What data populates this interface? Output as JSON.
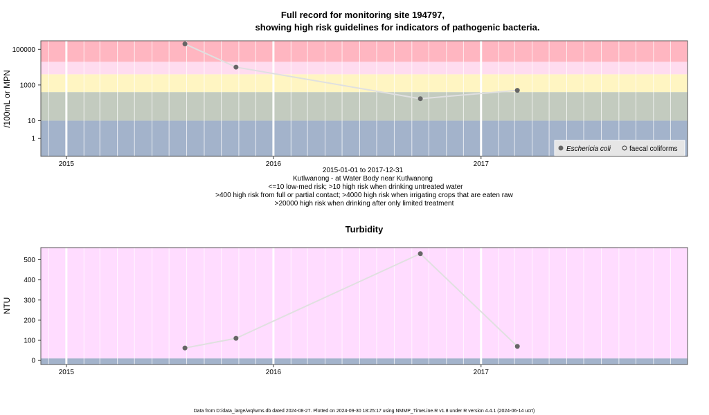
{
  "footer": "Data from D:/data_large/wq/wms.db dated 2024-08-27. Plotted on 2024-09-30 18:25:17 using NMMP_TimeLine.R v1.8 under R version 4.4.1 (2024-06-14 ucrt)",
  "colors": {
    "band_very_high": "#ffb6c1",
    "band_high": "#ffdcef",
    "band_medium": "#fff5c2",
    "band_low": "#c3cbbf",
    "band_lowest": "#a3b3cb",
    "turbidity_bg": "#ffdcff",
    "turbidity_base": "#a3b3cb",
    "line": "#e0e0e0",
    "marker": "#666666",
    "grid": "#ffffff"
  },
  "chart_data": [
    {
      "type": "scatter",
      "title_line1": "Full record for monitoring site 194797,",
      "title_line2": "showing high risk guidelines for indicators of pathogenic bacteria.",
      "ylabel": "/100mL or MPN",
      "yscale": "log",
      "ylim": [
        0.1,
        300000
      ],
      "xlim": [
        "2014-11-17",
        "2017-12-31"
      ],
      "x_ticks": [
        "2015",
        "2016",
        "2017"
      ],
      "y_ticks": [
        {
          "value": 1,
          "label": "1"
        },
        {
          "value": 10,
          "label": "10"
        },
        {
          "value": 1000,
          "label": "1000"
        },
        {
          "value": 100000,
          "label": "100000"
        }
      ],
      "risk_bands": [
        {
          "from": 0.1,
          "to": 10,
          "color": "band_lowest"
        },
        {
          "from": 10,
          "to": 400,
          "color": "band_low"
        },
        {
          "from": 400,
          "to": 4000,
          "color": "band_medium"
        },
        {
          "from": 4000,
          "to": 20000,
          "color": "band_high"
        },
        {
          "from": 20000,
          "to": 300000,
          "color": "band_very_high"
        }
      ],
      "series": [
        {
          "name": "Eschericia coli",
          "marker": "filled",
          "x": [
            "2015-07-29",
            "2015-10-27",
            "2016-09-16",
            "2017-03-06"
          ],
          "values": [
            200000,
            10000,
            170,
            500
          ]
        }
      ],
      "legend": {
        "position": "bottom-right",
        "items": [
          {
            "label": "Eschericia coli",
            "marker": "filled",
            "italic": true
          },
          {
            "label": "faecal coliforms",
            "marker": "open",
            "italic": false
          }
        ]
      },
      "caption": [
        "2015-01-01 to 2017-12-31",
        "Kutlwanong - at Water Body near Kutlwanong",
        "<=10 low-med risk; >10 high risk when drinking untreated water",
        ">400 high risk from full or partial contact; >4000 high risk when irrigating crops that are eaten raw",
        ">20000 high risk when drinking after only limited treatment"
      ]
    },
    {
      "type": "line",
      "title": "Turbidity",
      "ylabel": "NTU",
      "ylim": [
        -20,
        560
      ],
      "xlim": [
        "2014-11-17",
        "2017-12-31"
      ],
      "x_ticks": [
        "2015",
        "2016",
        "2017"
      ],
      "y_ticks": [
        0,
        100,
        200,
        300,
        400,
        500
      ],
      "base_band": {
        "from": -20,
        "to": 10
      },
      "series": [
        {
          "x": [
            "2015-07-29",
            "2015-10-27",
            "2016-09-16",
            "2017-03-06"
          ],
          "values": [
            62,
            110,
            530,
            70
          ]
        }
      ]
    }
  ]
}
